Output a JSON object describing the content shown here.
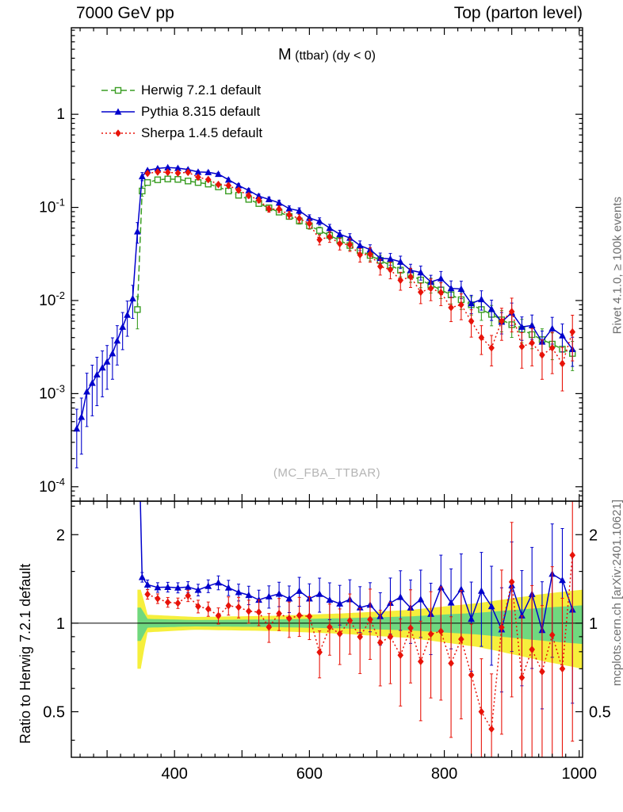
{
  "header": {
    "left": "7000 GeV pp",
    "right": "Top (parton level)"
  },
  "side_texts": {
    "top_right": "Rivet 4.1.0, ≥ 100k events",
    "bottom_right": "mcplots.cern.ch [arXiv:2401.10621]"
  },
  "watermark": "(MC_FBA_TTBAR)",
  "chart_data": {
    "type": "line",
    "title": "M(ttbar) (dy < 0)",
    "title_main": "M",
    "title_sub": "(ttbar) (dy < 0)",
    "xlabel": "",
    "xlim": [
      247,
      1005
    ],
    "x_ticks": [
      400,
      600,
      800,
      1000
    ],
    "x_minor_step": 20,
    "top_panel": {
      "yscale": "log",
      "ylim": [
        7e-05,
        8.5
      ],
      "ytick_values": [
        1,
        0.1,
        0.01,
        0.001,
        0.0001
      ],
      "ytick_labels": [
        "1",
        "10^-1",
        "10^-2",
        "10^-3",
        "10^-4"
      ]
    },
    "ratio_panel": {
      "yscale": "log",
      "ylim": [
        0.35,
        2.6
      ],
      "yticks": [
        0.5,
        1,
        2
      ],
      "yminor": [
        0.4,
        0.6,
        0.7,
        0.8,
        0.9,
        1.5,
        2.5
      ],
      "ylabel": "Ratio to Herwig 7.2.1 default"
    },
    "ratio_denominator": "Herwig 7.2.1 default",
    "band": {
      "outer_color": "#f6ef3c",
      "inner_color": "#6fd87f",
      "control_points": [
        [
          345,
          0.3,
          0.13
        ],
        [
          354,
          0.3,
          0.13
        ],
        [
          356,
          0.07,
          0.035
        ],
        [
          430,
          0.05,
          0.025
        ],
        [
          550,
          0.06,
          0.03
        ],
        [
          650,
          0.08,
          0.04
        ],
        [
          750,
          0.11,
          0.055
        ],
        [
          850,
          0.17,
          0.085
        ],
        [
          950,
          0.26,
          0.13
        ],
        [
          1005,
          0.3,
          0.15
        ]
      ]
    },
    "series": [
      {
        "name": "Herwig 7.2.1 default",
        "color": "#3a9d23",
        "line": "dashed",
        "marker": "open-square",
        "points": [
          [
            345,
            0.008,
            0.38
          ],
          [
            352,
            0.15,
            0.12
          ],
          [
            360,
            0.185
          ],
          [
            375,
            0.198
          ],
          [
            390,
            0.202
          ],
          [
            405,
            0.2
          ],
          [
            420,
            0.192
          ],
          [
            435,
            0.185
          ],
          [
            450,
            0.178
          ],
          [
            465,
            0.166
          ],
          [
            480,
            0.15
          ],
          [
            495,
            0.135
          ],
          [
            510,
            0.122
          ],
          [
            525,
            0.11
          ],
          [
            540,
            0.099
          ],
          [
            555,
            0.089
          ],
          [
            570,
            0.08
          ],
          [
            585,
            0.0715
          ],
          [
            600,
            0.0635
          ],
          [
            615,
            0.0565
          ],
          [
            630,
            0.05
          ],
          [
            645,
            0.0442
          ],
          [
            660,
            0.039
          ],
          [
            675,
            0.0345
          ],
          [
            690,
            0.0305
          ],
          [
            705,
            0.027
          ],
          [
            720,
            0.0239
          ],
          [
            735,
            0.0212
          ],
          [
            750,
            0.0187
          ],
          [
            765,
            0.0166
          ],
          [
            780,
            0.0147
          ],
          [
            795,
            0.013
          ],
          [
            810,
            0.0115
          ],
          [
            825,
            0.0102
          ],
          [
            840,
            0.009
          ],
          [
            855,
            0.008
          ],
          [
            870,
            0.0071
          ],
          [
            885,
            0.0062
          ],
          [
            900,
            0.0055
          ],
          [
            915,
            0.0049
          ],
          [
            930,
            0.0043
          ],
          [
            945,
            0.0038
          ],
          [
            960,
            0.0034
          ],
          [
            975,
            0.003
          ],
          [
            990,
            0.0027
          ]
        ]
      },
      {
        "name": "Pythia 8.315 default",
        "color": "#0000cc",
        "line": "solid",
        "marker": "triangle",
        "points": [
          [
            255,
            0.00042
          ],
          [
            262,
            0.00056
          ],
          [
            270,
            0.00105
          ],
          [
            278,
            0.0013
          ],
          [
            285,
            0.0016
          ],
          [
            293,
            0.0019
          ],
          [
            300,
            0.0022
          ],
          [
            308,
            0.0027
          ],
          [
            315,
            0.0037
          ],
          [
            323,
            0.0052
          ],
          [
            330,
            0.007
          ],
          [
            338,
            0.0105
          ],
          [
            345,
            0.055,
            0.25
          ],
          [
            352,
            0.215,
            0.1
          ],
          [
            360,
            0.25
          ],
          [
            375,
            0.262
          ],
          [
            390,
            0.268
          ],
          [
            405,
            0.264
          ],
          [
            420,
            0.255
          ],
          [
            435,
            0.24
          ],
          [
            450,
            0.238
          ],
          [
            465,
            0.228
          ],
          [
            480,
            0.198
          ],
          [
            495,
            0.172
          ],
          [
            510,
            0.152
          ],
          [
            525,
            0.132
          ],
          [
            540,
            0.122
          ],
          [
            555,
            0.112
          ],
          [
            570,
            0.097
          ],
          [
            585,
            0.092
          ],
          [
            600,
            0.077
          ],
          [
            615,
            0.071
          ],
          [
            630,
            0.06
          ],
          [
            645,
            0.0515
          ],
          [
            660,
            0.047
          ],
          [
            675,
            0.039
          ],
          [
            690,
            0.0352
          ],
          [
            705,
            0.0285
          ],
          [
            720,
            0.028
          ],
          [
            735,
            0.026
          ],
          [
            750,
            0.0211
          ],
          [
            765,
            0.02
          ],
          [
            780,
            0.0158
          ],
          [
            795,
            0.0172
          ],
          [
            810,
            0.0135
          ],
          [
            825,
            0.0133
          ],
          [
            840,
            0.0093
          ],
          [
            855,
            0.0103
          ],
          [
            870,
            0.0081
          ],
          [
            885,
            0.0059
          ],
          [
            900,
            0.0074
          ],
          [
            915,
            0.0052
          ],
          [
            930,
            0.0054
          ],
          [
            945,
            0.0036
          ],
          [
            960,
            0.005
          ],
          [
            975,
            0.0042
          ],
          [
            990,
            0.003
          ]
        ]
      },
      {
        "name": "Sherpa 1.4.5 default",
        "color": "#e81309",
        "line": "dotted",
        "marker": "diamond",
        "points": [
          [
            360,
            0.232
          ],
          [
            375,
            0.24
          ],
          [
            390,
            0.238
          ],
          [
            405,
            0.234
          ],
          [
            420,
            0.238
          ],
          [
            435,
            0.211
          ],
          [
            450,
            0.199
          ],
          [
            465,
            0.176
          ],
          [
            480,
            0.172
          ],
          [
            495,
            0.153
          ],
          [
            510,
            0.134
          ],
          [
            525,
            0.12
          ],
          [
            540,
            0.096
          ],
          [
            555,
            0.096
          ],
          [
            570,
            0.083
          ],
          [
            585,
            0.076
          ],
          [
            600,
            0.067
          ],
          [
            615,
            0.045
          ],
          [
            630,
            0.0485
          ],
          [
            645,
            0.0407
          ],
          [
            660,
            0.0398
          ],
          [
            675,
            0.031
          ],
          [
            690,
            0.0314
          ],
          [
            705,
            0.0232
          ],
          [
            720,
            0.0215
          ],
          [
            735,
            0.0165
          ],
          [
            750,
            0.018
          ],
          [
            765,
            0.0123
          ],
          [
            780,
            0.0135
          ],
          [
            795,
            0.0122
          ],
          [
            810,
            0.0084
          ],
          [
            825,
            0.009
          ],
          [
            840,
            0.006
          ],
          [
            855,
            0.004
          ],
          [
            870,
            0.0031
          ],
          [
            885,
            0.006
          ],
          [
            900,
            0.0076
          ],
          [
            915,
            0.0032
          ],
          [
            930,
            0.0035
          ],
          [
            945,
            0.0026
          ],
          [
            960,
            0.0031
          ],
          [
            975,
            0.0021
          ],
          [
            990,
            0.0046
          ]
        ]
      }
    ]
  }
}
